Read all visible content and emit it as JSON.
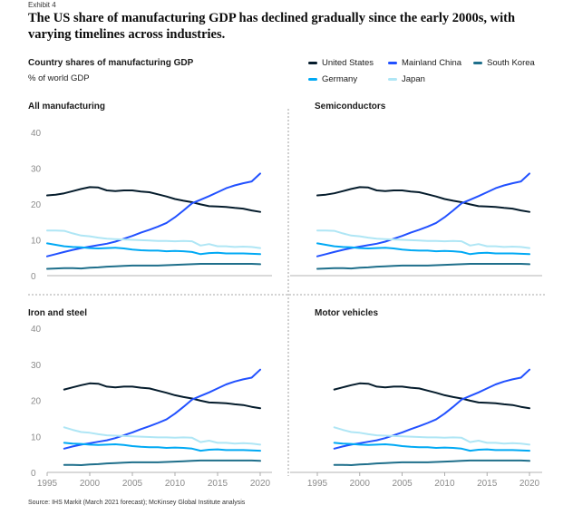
{
  "exhibit_label": "Exhibit 4",
  "headline": "The US share of manufacturing GDP has declined gradually since the early 2000s, with varying timelines across industries.",
  "subtitle": "Country shares of manufacturing GDP",
  "unit_label": "% of world GDP",
  "source": "Source: IHS Markit (March 2021 forecast); McKinsey Global Institute analysis",
  "colors": {
    "United States": "#051c2c",
    "Mainland China": "#2251ff",
    "South Korea": "#1f6f8b",
    "Germany": "#00a9f4",
    "Japan": "#afe6f5"
  },
  "chart_data": [
    {
      "type": "line",
      "title": "All manufacturing",
      "x": [
        1995,
        1996,
        1997,
        1998,
        1999,
        2000,
        2001,
        2002,
        2003,
        2004,
        2005,
        2006,
        2007,
        2008,
        2009,
        2010,
        2011,
        2012,
        2013,
        2014,
        2015,
        2016,
        2017,
        2018,
        2019,
        2020
      ],
      "ylim": [
        0,
        40
      ],
      "yticks": [
        0,
        10,
        20,
        30,
        40
      ],
      "xticks": [],
      "series": [
        {
          "name": "United States",
          "values": [
            22.4,
            22.6,
            23.0,
            23.6,
            24.2,
            24.7,
            24.6,
            23.8,
            23.6,
            23.8,
            23.8,
            23.5,
            23.3,
            22.7,
            22.1,
            21.4,
            20.9,
            20.5,
            19.9,
            19.4,
            19.3,
            19.2,
            18.9,
            18.7,
            18.2,
            17.8
          ]
        },
        {
          "name": "Mainland China",
          "values": [
            5.4,
            6.0,
            6.6,
            7.2,
            7.7,
            8.1,
            8.5,
            8.9,
            9.5,
            10.3,
            11.1,
            12.0,
            12.8,
            13.7,
            14.7,
            16.3,
            18.2,
            20.2,
            21.2,
            22.2,
            23.3,
            24.4,
            25.2,
            25.8,
            26.3,
            28.5
          ]
        },
        {
          "name": "South Korea",
          "values": [
            1.9,
            2.0,
            2.1,
            2.1,
            2.0,
            2.2,
            2.3,
            2.5,
            2.6,
            2.7,
            2.8,
            2.8,
            2.8,
            2.8,
            2.9,
            3.0,
            3.1,
            3.2,
            3.3,
            3.3,
            3.3,
            3.3,
            3.3,
            3.3,
            3.3,
            3.2
          ]
        },
        {
          "name": "Germany",
          "values": [
            9.0,
            8.6,
            8.2,
            8.0,
            7.9,
            7.7,
            7.6,
            7.7,
            7.8,
            7.6,
            7.3,
            7.1,
            7.0,
            7.0,
            6.8,
            6.9,
            6.8,
            6.6,
            6.0,
            6.3,
            6.4,
            6.2,
            6.2,
            6.2,
            6.1,
            6.0
          ]
        },
        {
          "name": "Japan",
          "values": [
            12.6,
            12.6,
            12.5,
            11.8,
            11.2,
            11.0,
            10.6,
            10.3,
            10.2,
            10.1,
            10.0,
            9.9,
            9.8,
            9.7,
            9.7,
            9.6,
            9.7,
            9.6,
            8.4,
            8.8,
            8.2,
            8.2,
            8.0,
            8.1,
            8.0,
            7.7
          ]
        }
      ]
    },
    {
      "type": "line",
      "title": "Semiconductors",
      "x": [
        1995,
        1996,
        1997,
        1998,
        1999,
        2000,
        2001,
        2002,
        2003,
        2004,
        2005,
        2006,
        2007,
        2008,
        2009,
        2010,
        2011,
        2012,
        2013,
        2014,
        2015,
        2016,
        2017,
        2018,
        2019,
        2020
      ],
      "ylim": [
        0,
        40
      ],
      "yticks": [],
      "xticks": [],
      "series": [
        {
          "name": "United States",
          "values": [
            22.4,
            22.6,
            23.0,
            23.6,
            24.2,
            24.7,
            24.6,
            23.8,
            23.6,
            23.8,
            23.8,
            23.5,
            23.3,
            22.7,
            22.1,
            21.4,
            20.9,
            20.5,
            19.9,
            19.4,
            19.3,
            19.2,
            18.9,
            18.7,
            18.2,
            17.8
          ]
        },
        {
          "name": "Mainland China",
          "values": [
            5.4,
            6.0,
            6.6,
            7.2,
            7.7,
            8.1,
            8.5,
            8.9,
            9.5,
            10.3,
            11.1,
            12.0,
            12.8,
            13.7,
            14.7,
            16.3,
            18.2,
            20.2,
            21.2,
            22.2,
            23.3,
            24.4,
            25.2,
            25.8,
            26.3,
            28.5
          ]
        },
        {
          "name": "South Korea",
          "values": [
            1.9,
            2.0,
            2.1,
            2.1,
            2.0,
            2.2,
            2.3,
            2.5,
            2.6,
            2.7,
            2.8,
            2.8,
            2.8,
            2.8,
            2.9,
            3.0,
            3.1,
            3.2,
            3.3,
            3.3,
            3.3,
            3.3,
            3.3,
            3.3,
            3.3,
            3.2
          ]
        },
        {
          "name": "Germany",
          "values": [
            9.0,
            8.6,
            8.2,
            8.0,
            7.9,
            7.7,
            7.6,
            7.7,
            7.8,
            7.6,
            7.3,
            7.1,
            7.0,
            7.0,
            6.8,
            6.9,
            6.8,
            6.6,
            6.0,
            6.3,
            6.4,
            6.2,
            6.2,
            6.2,
            6.1,
            6.0
          ]
        },
        {
          "name": "Japan",
          "values": [
            12.6,
            12.6,
            12.5,
            11.8,
            11.2,
            11.0,
            10.6,
            10.3,
            10.2,
            10.1,
            10.0,
            9.9,
            9.8,
            9.7,
            9.7,
            9.6,
            9.7,
            9.6,
            8.4,
            8.8,
            8.2,
            8.2,
            8.0,
            8.1,
            8.0,
            7.7
          ]
        }
      ]
    },
    {
      "type": "line",
      "title": "Iron and steel",
      "x": [
        1995,
        1996,
        1997,
        1998,
        1999,
        2000,
        2001,
        2002,
        2003,
        2004,
        2005,
        2006,
        2007,
        2008,
        2009,
        2010,
        2011,
        2012,
        2013,
        2014,
        2015,
        2016,
        2017,
        2018,
        2019,
        2020
      ],
      "ylim": [
        0,
        40
      ],
      "yticks": [
        0,
        10,
        20,
        30,
        40
      ],
      "xticks": [
        1995,
        2000,
        2005,
        2010,
        2015,
        2020
      ],
      "series": [
        {
          "name": "United States",
          "values": [
            22.4,
            22.6,
            23.0,
            23.6,
            24.2,
            24.7,
            24.6,
            23.8,
            23.6,
            23.8,
            23.8,
            23.5,
            23.3,
            22.7,
            22.1,
            21.4,
            20.9,
            20.5,
            19.9,
            19.4,
            19.3,
            19.2,
            18.9,
            18.7,
            18.2,
            17.8
          ]
        },
        {
          "name": "Mainland China",
          "values": [
            5.4,
            6.0,
            6.6,
            7.2,
            7.7,
            8.1,
            8.5,
            8.9,
            9.5,
            10.3,
            11.1,
            12.0,
            12.8,
            13.7,
            14.7,
            16.3,
            18.2,
            20.2,
            21.2,
            22.2,
            23.3,
            24.4,
            25.2,
            25.8,
            26.3,
            28.5
          ]
        },
        {
          "name": "South Korea",
          "values": [
            1.9,
            2.0,
            2.1,
            2.1,
            2.0,
            2.2,
            2.3,
            2.5,
            2.6,
            2.7,
            2.8,
            2.8,
            2.8,
            2.8,
            2.9,
            3.0,
            3.1,
            3.2,
            3.3,
            3.3,
            3.3,
            3.3,
            3.3,
            3.3,
            3.3,
            3.2
          ]
        },
        {
          "name": "Germany",
          "values": [
            9.0,
            8.6,
            8.2,
            8.0,
            7.9,
            7.7,
            7.6,
            7.7,
            7.8,
            7.6,
            7.3,
            7.1,
            7.0,
            7.0,
            6.8,
            6.9,
            6.8,
            6.6,
            6.0,
            6.3,
            6.4,
            6.2,
            6.2,
            6.2,
            6.1,
            6.0
          ]
        },
        {
          "name": "Japan",
          "values": [
            12.6,
            12.6,
            12.5,
            11.8,
            11.2,
            11.0,
            10.6,
            10.3,
            10.2,
            10.1,
            10.0,
            9.9,
            9.8,
            9.7,
            9.7,
            9.6,
            9.7,
            9.6,
            8.4,
            8.8,
            8.2,
            8.2,
            8.0,
            8.1,
            8.0,
            7.7
          ]
        }
      ]
    },
    {
      "type": "line",
      "title": "Motor vehicles",
      "x": [
        1995,
        1996,
        1997,
        1998,
        1999,
        2000,
        2001,
        2002,
        2003,
        2004,
        2005,
        2006,
        2007,
        2008,
        2009,
        2010,
        2011,
        2012,
        2013,
        2014,
        2015,
        2016,
        2017,
        2018,
        2019,
        2020
      ],
      "ylim": [
        0,
        40
      ],
      "yticks": [],
      "xticks": [
        1995,
        2000,
        2005,
        2010,
        2015,
        2020
      ],
      "series": [
        {
          "name": "United States",
          "values": [
            22.4,
            22.6,
            23.0,
            23.6,
            24.2,
            24.7,
            24.6,
            23.8,
            23.6,
            23.8,
            23.8,
            23.5,
            23.3,
            22.7,
            22.1,
            21.4,
            20.9,
            20.5,
            19.9,
            19.4,
            19.3,
            19.2,
            18.9,
            18.7,
            18.2,
            17.8
          ]
        },
        {
          "name": "Mainland China",
          "values": [
            5.4,
            6.0,
            6.6,
            7.2,
            7.7,
            8.1,
            8.5,
            8.9,
            9.5,
            10.3,
            11.1,
            12.0,
            12.8,
            13.7,
            14.7,
            16.3,
            18.2,
            20.2,
            21.2,
            22.2,
            23.3,
            24.4,
            25.2,
            25.8,
            26.3,
            28.5
          ]
        },
        {
          "name": "South Korea",
          "values": [
            1.9,
            2.0,
            2.1,
            2.1,
            2.0,
            2.2,
            2.3,
            2.5,
            2.6,
            2.7,
            2.8,
            2.8,
            2.8,
            2.8,
            2.9,
            3.0,
            3.1,
            3.2,
            3.3,
            3.3,
            3.3,
            3.3,
            3.3,
            3.3,
            3.3,
            3.2
          ]
        },
        {
          "name": "Germany",
          "values": [
            9.0,
            8.6,
            8.2,
            8.0,
            7.9,
            7.7,
            7.6,
            7.7,
            7.8,
            7.6,
            7.3,
            7.1,
            7.0,
            7.0,
            6.8,
            6.9,
            6.8,
            6.6,
            6.0,
            6.3,
            6.4,
            6.2,
            6.2,
            6.2,
            6.1,
            6.0
          ]
        },
        {
          "name": "Japan",
          "values": [
            12.6,
            12.6,
            12.5,
            11.8,
            11.2,
            11.0,
            10.6,
            10.3,
            10.2,
            10.1,
            10.0,
            9.9,
            9.8,
            9.7,
            9.7,
            9.6,
            9.7,
            9.6,
            8.4,
            8.8,
            8.2,
            8.2,
            8.0,
            8.1,
            8.0,
            7.7
          ]
        }
      ]
    }
  ]
}
